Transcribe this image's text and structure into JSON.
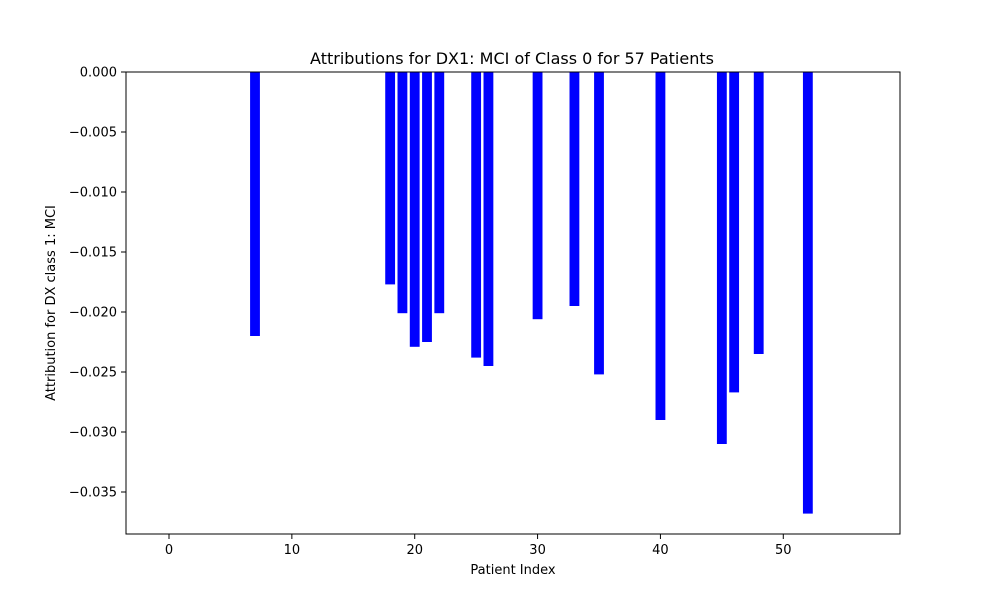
{
  "chart_data": {
    "type": "bar",
    "title": "Attributions for DX1: MCI of Class 0 for 57 Patients",
    "xlabel": "Patient Index",
    "ylabel": "Attribution for DX class 1: MCI",
    "xlim": [
      -3.5,
      59.5
    ],
    "ylim": [
      -0.0385,
      0.0
    ],
    "xticks": [
      0,
      10,
      20,
      30,
      40,
      50
    ],
    "yticks": [
      0.0,
      -0.005,
      -0.01,
      -0.015,
      -0.02,
      -0.025,
      -0.03,
      -0.035
    ],
    "ytick_labels": [
      "0.000",
      "−0.005",
      "−0.010",
      "−0.015",
      "−0.020",
      "−0.025",
      "−0.030",
      "−0.035"
    ],
    "xtick_labels": [
      "0",
      "10",
      "20",
      "30",
      "40",
      "50"
    ],
    "bar_color": "#0000ff",
    "bar_width": 0.8,
    "grid": false,
    "x": [
      7,
      18,
      19,
      20,
      21,
      22,
      25,
      26,
      30,
      33,
      35,
      40,
      45,
      46,
      48,
      52
    ],
    "values": [
      -0.022,
      -0.0177,
      -0.0201,
      -0.0229,
      -0.0225,
      -0.0201,
      -0.0238,
      -0.0245,
      -0.0206,
      -0.0195,
      -0.0252,
      -0.029,
      -0.031,
      -0.0267,
      -0.0235,
      -0.0368
    ]
  }
}
